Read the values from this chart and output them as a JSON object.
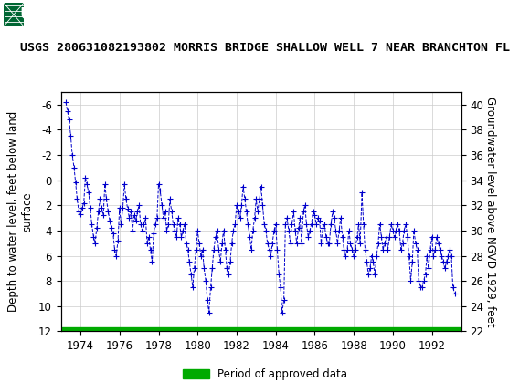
{
  "title": "USGS 280631082193802 MORRIS BRIDGE SHALLOW WELL 7 NEAR BRANCHTON FL",
  "ylabel_left": "Depth to water level, feet below land\nsurface",
  "ylabel_right": "Groundwater level above NGVD 1929, feet",
  "ylim_left": [
    12,
    -7
  ],
  "ylim_right": [
    22,
    41
  ],
  "xlim": [
    1973.0,
    1993.5
  ],
  "xticks": [
    1974,
    1976,
    1978,
    1980,
    1982,
    1984,
    1986,
    1988,
    1990,
    1992
  ],
  "yticks_left": [
    -6,
    -4,
    -2,
    0,
    2,
    4,
    6,
    8,
    10,
    12
  ],
  "yticks_right": [
    22,
    24,
    26,
    28,
    30,
    32,
    34,
    36,
    38,
    40
  ],
  "line_color": "#0000CC",
  "grid_color": "#CCCCCC",
  "background_color": "#FFFFFF",
  "header_color": "#006633",
  "approved_bar_color": "#00AA00",
  "approved_bar_y": 12,
  "legend_label": "Period of approved data",
  "title_fontsize": 9.5,
  "axis_label_fontsize": 8.5,
  "tick_fontsize": 8.5,
  "data_x": [
    1973.25,
    1973.33,
    1973.42,
    1973.5,
    1973.58,
    1973.67,
    1973.75,
    1973.83,
    1973.92,
    1974.0,
    1974.08,
    1974.17,
    1974.25,
    1974.33,
    1974.42,
    1974.5,
    1974.58,
    1974.67,
    1974.75,
    1974.83,
    1974.92,
    1975.0,
    1975.08,
    1975.17,
    1975.25,
    1975.33,
    1975.42,
    1975.5,
    1975.58,
    1975.67,
    1975.75,
    1975.83,
    1975.92,
    1976.0,
    1976.08,
    1976.17,
    1976.25,
    1976.33,
    1976.42,
    1976.5,
    1976.58,
    1976.67,
    1976.75,
    1976.83,
    1976.92,
    1977.0,
    1977.08,
    1977.17,
    1977.25,
    1977.33,
    1977.42,
    1977.5,
    1977.58,
    1977.67,
    1977.75,
    1977.83,
    1977.92,
    1978.0,
    1978.08,
    1978.17,
    1978.25,
    1978.33,
    1978.42,
    1978.5,
    1978.58,
    1978.67,
    1978.75,
    1978.83,
    1978.92,
    1979.0,
    1979.08,
    1979.17,
    1979.25,
    1979.33,
    1979.42,
    1979.5,
    1979.58,
    1979.67,
    1979.75,
    1979.83,
    1979.92,
    1980.0,
    1980.08,
    1980.17,
    1980.25,
    1980.33,
    1980.42,
    1980.5,
    1980.58,
    1980.67,
    1980.75,
    1980.83,
    1980.92,
    1981.0,
    1981.08,
    1981.17,
    1981.25,
    1981.33,
    1981.42,
    1981.5,
    1981.58,
    1981.67,
    1981.75,
    1981.83,
    1981.92,
    1982.0,
    1982.08,
    1982.17,
    1982.25,
    1982.33,
    1982.42,
    1982.5,
    1982.58,
    1982.67,
    1982.75,
    1982.83,
    1982.92,
    1983.0,
    1983.08,
    1983.17,
    1983.25,
    1983.33,
    1983.42,
    1983.5,
    1983.58,
    1983.67,
    1983.75,
    1983.83,
    1983.92,
    1984.0,
    1984.08,
    1984.17,
    1984.25,
    1984.33,
    1984.42,
    1984.5,
    1984.58,
    1984.67,
    1984.75,
    1984.83,
    1984.92,
    1985.0,
    1985.08,
    1985.17,
    1985.25,
    1985.33,
    1985.42,
    1985.5,
    1985.58,
    1985.67,
    1985.75,
    1985.83,
    1985.92,
    1986.0,
    1986.08,
    1986.17,
    1986.25,
    1986.33,
    1986.42,
    1986.5,
    1986.58,
    1986.67,
    1986.75,
    1986.83,
    1986.92,
    1987.0,
    1987.08,
    1987.17,
    1987.25,
    1987.33,
    1987.42,
    1987.5,
    1987.58,
    1987.67,
    1987.75,
    1987.83,
    1987.92,
    1988.0,
    1988.08,
    1988.17,
    1988.25,
    1988.33,
    1988.42,
    1988.5,
    1988.58,
    1988.67,
    1988.75,
    1988.83,
    1988.92,
    1989.0,
    1989.08,
    1989.17,
    1989.25,
    1989.33,
    1989.42,
    1989.5,
    1989.58,
    1989.67,
    1989.75,
    1989.83,
    1989.92,
    1990.0,
    1990.08,
    1990.17,
    1990.25,
    1990.33,
    1990.42,
    1990.5,
    1990.58,
    1990.67,
    1990.75,
    1990.83,
    1990.92,
    1991.0,
    1991.08,
    1991.17,
    1991.25,
    1991.33,
    1991.42,
    1991.5,
    1991.58,
    1991.67,
    1991.75,
    1991.83,
    1991.92,
    1992.0,
    1992.08,
    1992.17,
    1992.25,
    1992.33,
    1992.42,
    1992.5,
    1992.58,
    1992.67,
    1992.75,
    1992.83,
    1992.92,
    1993.0,
    1993.08,
    1993.17
  ],
  "data_y": [
    -6.2,
    -5.5,
    -4.8,
    -3.5,
    -2.0,
    -1.0,
    0.2,
    1.5,
    2.5,
    2.7,
    2.2,
    1.8,
    -0.2,
    0.3,
    1.0,
    2.2,
    3.5,
    4.5,
    5.0,
    3.8,
    2.5,
    1.5,
    2.2,
    2.8,
    0.3,
    1.5,
    2.5,
    3.2,
    3.8,
    4.2,
    5.5,
    6.0,
    4.8,
    2.2,
    3.5,
    2.2,
    0.3,
    1.5,
    2.3,
    3.0,
    2.5,
    4.0,
    2.8,
    3.2,
    2.5,
    2.0,
    3.5,
    4.0,
    3.5,
    3.0,
    5.0,
    4.5,
    5.5,
    6.5,
    4.2,
    3.5,
    3.0,
    0.3,
    0.8,
    2.0,
    3.0,
    2.5,
    4.0,
    3.5,
    1.5,
    2.5,
    3.5,
    4.0,
    4.5,
    3.0,
    3.5,
    4.5,
    4.0,
    3.5,
    5.0,
    5.5,
    6.5,
    7.5,
    8.5,
    7.0,
    5.5,
    4.0,
    5.0,
    6.0,
    5.5,
    7.0,
    8.0,
    9.5,
    10.5,
    8.5,
    7.0,
    5.5,
    4.5,
    4.0,
    5.5,
    6.5,
    5.0,
    4.0,
    5.5,
    7.0,
    7.5,
    6.5,
    5.0,
    4.0,
    3.5,
    2.0,
    2.5,
    3.0,
    2.0,
    0.5,
    1.5,
    2.5,
    3.5,
    4.5,
    5.5,
    4.0,
    3.0,
    1.5,
    2.5,
    1.5,
    0.5,
    2.0,
    3.5,
    4.0,
    5.0,
    5.5,
    6.0,
    5.0,
    4.0,
    3.5,
    5.5,
    7.5,
    8.5,
    10.5,
    9.5,
    3.5,
    3.0,
    4.0,
    5.0,
    3.5,
    2.5,
    4.0,
    5.0,
    3.8,
    3.0,
    5.0,
    2.5,
    2.0,
    3.5,
    4.5,
    4.0,
    3.5,
    2.5,
    2.8,
    3.5,
    3.0,
    3.2,
    5.0,
    3.8,
    3.5,
    4.5,
    5.0,
    5.0,
    3.5,
    2.5,
    3.0,
    4.0,
    5.0,
    4.0,
    3.0,
    4.5,
    5.5,
    6.0,
    5.5,
    4.0,
    5.0,
    5.5,
    6.0,
    5.5,
    4.5,
    3.5,
    5.0,
    1.0,
    3.5,
    5.5,
    6.5,
    7.5,
    7.0,
    6.0,
    6.5,
    7.5,
    6.0,
    5.0,
    3.5,
    4.5,
    5.5,
    5.0,
    4.5,
    5.5,
    4.5,
    3.5,
    4.0,
    4.5,
    4.0,
    3.5,
    4.0,
    5.5,
    5.0,
    4.0,
    3.5,
    4.5,
    6.0,
    8.0,
    6.5,
    4.0,
    5.0,
    5.5,
    8.0,
    8.5,
    8.5,
    8.0,
    7.5,
    6.0,
    7.0,
    5.5,
    4.5,
    6.0,
    5.5,
    4.5,
    5.0,
    5.5,
    6.0,
    6.5,
    7.0,
    6.5,
    6.0,
    5.5,
    6.0,
    8.5,
    9.0
  ]
}
